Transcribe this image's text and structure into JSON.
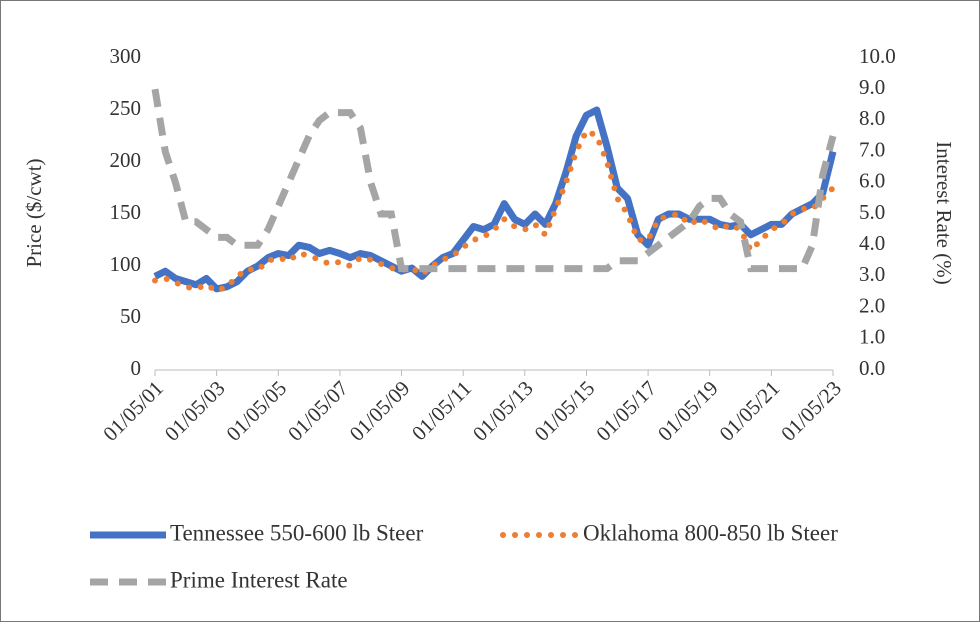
{
  "chart_data": {
    "type": "line",
    "ylabel": "Price ($/cwt)",
    "y2label": "Interest Rate (%)",
    "categories": [
      "01/05/01",
      null,
      null,
      null,
      null,
      null,
      "01/05/03",
      null,
      null,
      null,
      null,
      null,
      "01/05/05",
      null,
      null,
      null,
      null,
      null,
      "01/05/07",
      null,
      null,
      null,
      null,
      null,
      "01/05/09",
      null,
      null,
      null,
      null,
      null,
      "01/05/11",
      null,
      null,
      null,
      null,
      null,
      "01/05/13",
      null,
      null,
      null,
      null,
      null,
      "01/05/15",
      null,
      null,
      null,
      null,
      null,
      "01/05/17",
      null,
      null,
      null,
      null,
      null,
      "01/05/19",
      null,
      null,
      null,
      null,
      null,
      "01/05/21",
      null,
      null,
      null,
      null,
      null,
      "01/05/23"
    ],
    "series": [
      {
        "name": "Tennessee 550-600 lb Steer",
        "color": "#4472c4",
        "style": "solid",
        "values": [
          90,
          95,
          88,
          85,
          82,
          88,
          78,
          80,
          85,
          95,
          100,
          108,
          112,
          110,
          120,
          118,
          112,
          115,
          112,
          108,
          112,
          110,
          105,
          100,
          95,
          98,
          90,
          100,
          108,
          112,
          125,
          138,
          135,
          140,
          160,
          145,
          140,
          150,
          140,
          160,
          190,
          225,
          245,
          250,
          215,
          175,
          165,
          130,
          120,
          145,
          150,
          150,
          145,
          145,
          145,
          140,
          138,
          140,
          130,
          135,
          140,
          140,
          150,
          155,
          160,
          170,
          210
        ]
      },
      {
        "name": "Oklahoma 800-850 lb Steer",
        "color": "#ed7d31",
        "style": "dotted",
        "values": [
          86,
          88,
          84,
          80,
          78,
          82,
          76,
          80,
          90,
          97,
          96,
          105,
          108,
          105,
          112,
          110,
          106,
          102,
          104,
          100,
          108,
          106,
          102,
          98,
          96,
          98,
          92,
          100,
          106,
          110,
          118,
          125,
          128,
          135,
          145,
          138,
          135,
          140,
          130,
          155,
          180,
          210,
          230,
          225,
          200,
          165,
          150,
          125,
          125,
          145,
          148,
          150,
          140,
          145,
          140,
          135,
          140,
          135,
          115,
          125,
          135,
          140,
          150,
          155,
          155,
          165,
          175
        ]
      },
      {
        "name": "Prime Interest Rate",
        "color": "#a5a5a5",
        "style": "dashed",
        "axis": "y2",
        "values": [
          9.0,
          7.0,
          6.0,
          4.75,
          4.75,
          4.5,
          4.25,
          4.25,
          4.0,
          4.0,
          4.0,
          4.5,
          5.25,
          6.0,
          6.75,
          7.5,
          8.0,
          8.25,
          8.25,
          8.25,
          7.75,
          6.0,
          5.0,
          5.0,
          3.25,
          3.25,
          3.25,
          3.25,
          3.25,
          3.25,
          3.25,
          3.25,
          3.25,
          3.25,
          3.25,
          3.25,
          3.25,
          3.25,
          3.25,
          3.25,
          3.25,
          3.25,
          3.25,
          3.25,
          3.25,
          3.5,
          3.5,
          3.5,
          3.75,
          4.0,
          4.25,
          4.5,
          4.75,
          5.25,
          5.5,
          5.5,
          5.0,
          4.75,
          3.25,
          3.25,
          3.25,
          3.25,
          3.25,
          3.25,
          4.0,
          6.25,
          7.5
        ]
      }
    ],
    "ylim": [
      0,
      300
    ],
    "yticks": [
      0,
      50,
      100,
      150,
      200,
      250,
      300
    ],
    "y2lim": [
      0,
      10
    ],
    "y2ticks": [
      {
        "value": 0,
        "label": "0.0"
      },
      {
        "value": 1,
        "label": "1.0"
      },
      {
        "value": 2,
        "label": "2.0"
      },
      {
        "value": 3,
        "label": "3.0"
      },
      {
        "value": 4,
        "label": "4.0"
      },
      {
        "value": 5,
        "label": "5.0"
      },
      {
        "value": 6,
        "label": "6.0"
      },
      {
        "value": 7,
        "label": "7.0"
      },
      {
        "value": 8,
        "label": "8.0"
      },
      {
        "value": 9,
        "label": "9.0"
      },
      {
        "value": 10,
        "label": "10.0"
      }
    ],
    "legend": "bottom",
    "grid": false
  }
}
